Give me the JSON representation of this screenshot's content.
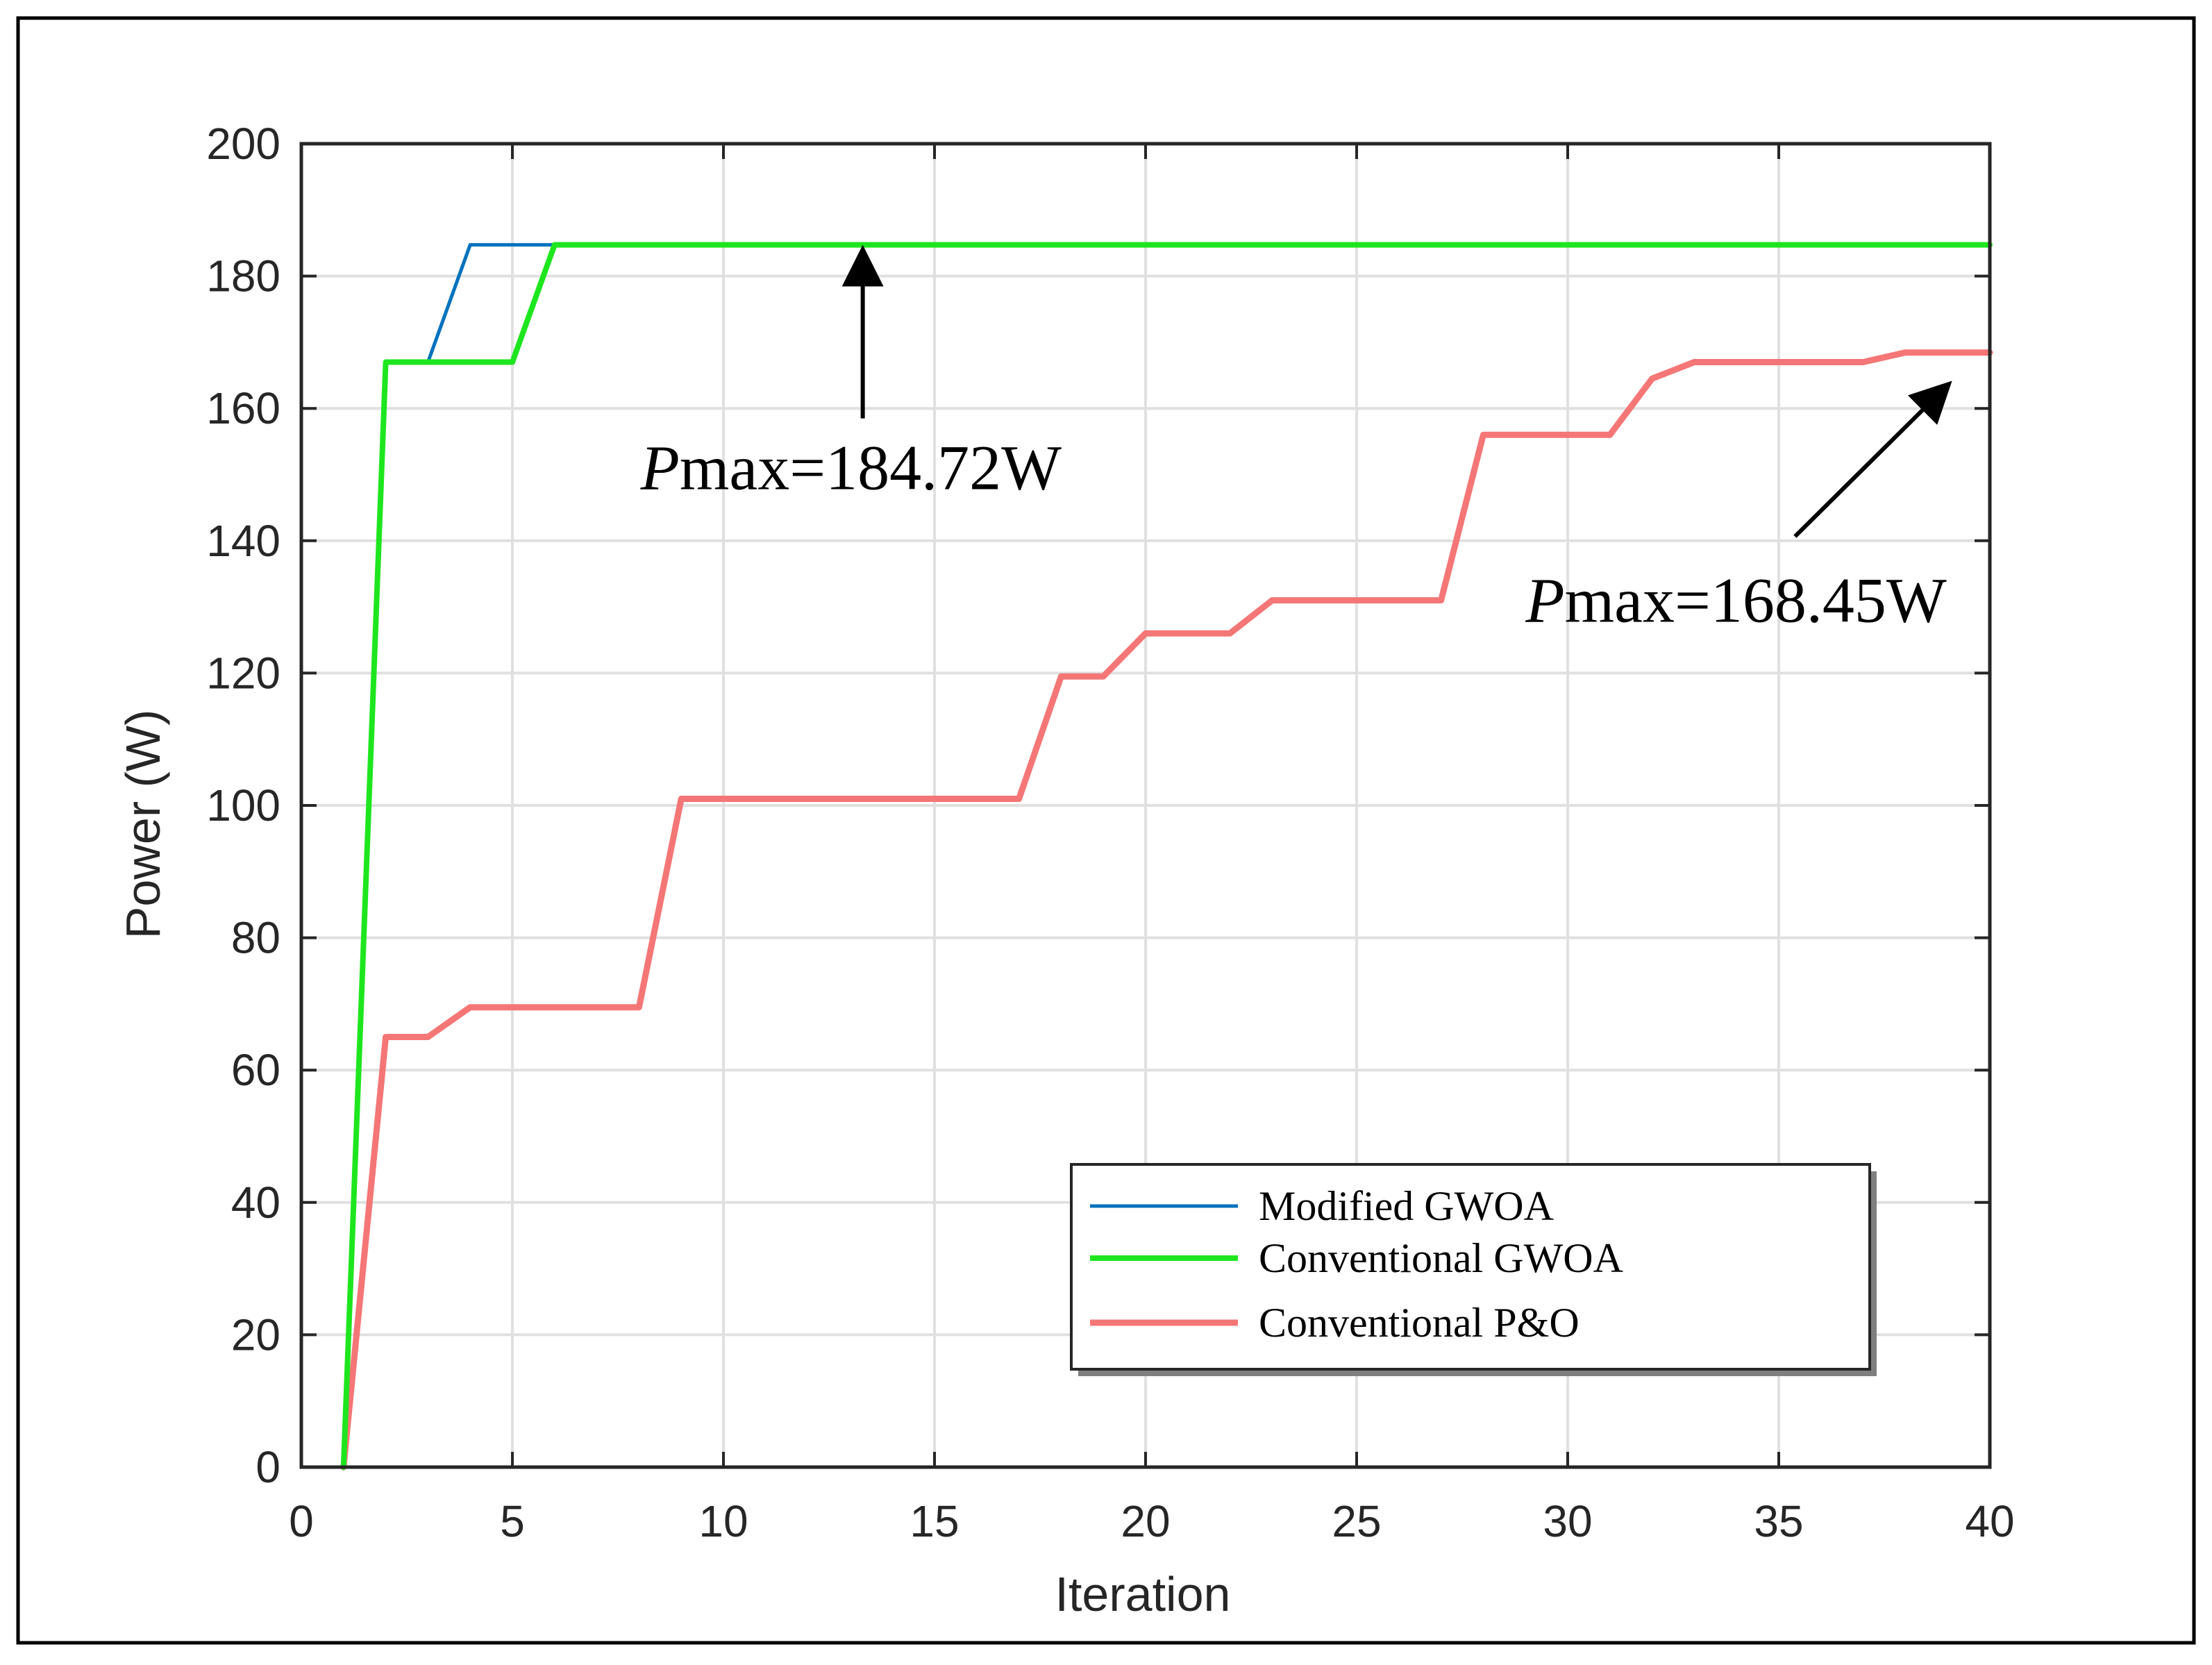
{
  "chart_data": {
    "type": "line",
    "title": "",
    "xlabel": "Iteration",
    "ylabel": "Power (W)",
    "xlim": [
      0,
      40
    ],
    "ylim": [
      0,
      200
    ],
    "xticks": [
      0,
      5,
      10,
      15,
      20,
      25,
      30,
      35,
      40
    ],
    "yticks": [
      0,
      20,
      40,
      60,
      80,
      100,
      120,
      140,
      160,
      180,
      200
    ],
    "grid": true,
    "legend_position": "bottom-right",
    "series": [
      {
        "name": "Modified GWOA",
        "color": "#0072BD",
        "x": [
          1,
          2,
          3,
          4,
          5,
          6,
          7,
          8,
          9,
          10,
          11,
          12,
          13,
          14,
          15,
          16,
          17,
          18,
          19,
          20,
          21,
          22,
          23,
          24,
          25,
          26,
          27,
          28,
          29,
          30,
          31,
          32,
          33,
          34,
          35,
          36,
          37,
          38,
          39,
          40
        ],
        "y": [
          0,
          167,
          167,
          184.72,
          184.72,
          184.72,
          184.72,
          184.72,
          184.72,
          184.72,
          184.72,
          184.72,
          184.72,
          184.72,
          184.72,
          184.72,
          184.72,
          184.72,
          184.72,
          184.72,
          184.72,
          184.72,
          184.72,
          184.72,
          184.72,
          184.72,
          184.72,
          184.72,
          184.72,
          184.72,
          184.72,
          184.72,
          184.72,
          184.72,
          184.72,
          184.72,
          184.72,
          184.72,
          184.72,
          184.72
        ]
      },
      {
        "name": "Conventional GWOA",
        "color": "#1EE61E",
        "x": [
          1,
          2,
          3,
          4,
          5,
          6,
          7,
          8,
          9,
          10,
          11,
          12,
          13,
          14,
          15,
          16,
          17,
          18,
          19,
          20,
          21,
          22,
          23,
          24,
          25,
          26,
          27,
          28,
          29,
          30,
          31,
          32,
          33,
          34,
          35,
          36,
          37,
          38,
          39,
          40
        ],
        "y": [
          0,
          167,
          167,
          167,
          167,
          184.72,
          184.72,
          184.72,
          184.72,
          184.72,
          184.72,
          184.72,
          184.72,
          184.72,
          184.72,
          184.72,
          184.72,
          184.72,
          184.72,
          184.72,
          184.72,
          184.72,
          184.72,
          184.72,
          184.72,
          184.72,
          184.72,
          184.72,
          184.72,
          184.72,
          184.72,
          184.72,
          184.72,
          184.72,
          184.72,
          184.72,
          184.72,
          184.72,
          184.72,
          184.72
        ]
      },
      {
        "name": "Conventional P&O",
        "color": "#F47676",
        "x": [
          1,
          2,
          3,
          4,
          5,
          6,
          7,
          8,
          9,
          10,
          11,
          12,
          13,
          14,
          15,
          16,
          17,
          18,
          19,
          20,
          21,
          22,
          23,
          24,
          25,
          26,
          27,
          28,
          29,
          30,
          31,
          32,
          33,
          34,
          35,
          36,
          37,
          38,
          39,
          40
        ],
        "y": [
          0,
          65,
          65,
          69.5,
          69.5,
          69.5,
          69.5,
          69.5,
          101,
          101,
          101,
          101,
          101,
          101,
          101,
          101,
          101,
          119.5,
          119.5,
          126,
          126,
          126,
          131,
          131,
          131,
          131,
          131,
          156,
          156,
          156,
          156,
          164.5,
          167,
          167,
          167,
          167,
          167,
          168.45,
          168.45,
          168.45
        ]
      }
    ],
    "annotations": [
      {
        "prefix": "P",
        "text": "max=184.72W",
        "x": 13.3,
        "y": 184.72
      },
      {
        "prefix": "P",
        "text": "max=168.45W",
        "x": 39.2,
        "y": 168.45
      }
    ]
  }
}
